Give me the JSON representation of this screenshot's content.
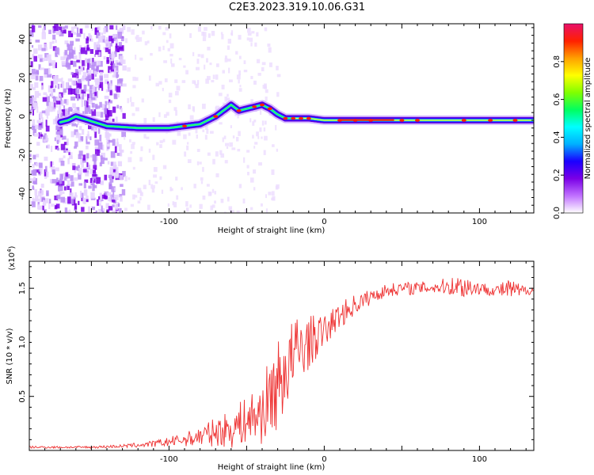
{
  "title": "C2E3.2023.319.10.06.G31",
  "chart_data": [
    {
      "type": "heatmap",
      "name": "spectrogram",
      "xlabel": "Height of straight line (km)",
      "ylabel": "Frequency (Hz)",
      "xlim": [
        -190,
        135
      ],
      "ylim": [
        -50,
        48
      ],
      "x_ticks": [
        -100,
        0,
        100
      ],
      "y_ticks": [
        -40,
        -20,
        0,
        20,
        40
      ],
      "colorbar": {
        "label": "Normalized spectral amplitude",
        "ticks": [
          "0.0",
          "0.2",
          "0.4",
          "0.6",
          "0.8"
        ],
        "range": [
          0,
          1
        ],
        "colors": [
          "#ffffff",
          "#c070ff",
          "#7a00e6",
          "#1a00ff",
          "#00b0ff",
          "#00ffff",
          "#00ff60",
          "#80ff00",
          "#ffff00",
          "#ffa000",
          "#ff2000",
          "#e8106a"
        ]
      },
      "ridge": {
        "x": [
          -170,
          -165,
          -160,
          -140,
          -120,
          -100,
          -90,
          -80,
          -70,
          -65,
          -60,
          -55,
          -50,
          -45,
          -40,
          -35,
          -30,
          -25,
          -20,
          -10,
          0,
          20,
          40,
          60,
          80,
          100,
          120,
          135
        ],
        "y": [
          -3,
          -2,
          0,
          -5,
          -6,
          -6,
          -5,
          -4,
          0,
          3,
          6,
          3,
          4,
          5,
          6,
          4,
          1,
          -1,
          -1,
          -1,
          -2,
          -2,
          -2,
          -2,
          -2,
          -2,
          -2,
          -2
        ]
      },
      "hotspots_x": [
        -90,
        -70,
        -55,
        -45,
        -40,
        -35,
        -25,
        -20,
        -15,
        -10,
        10,
        20,
        30,
        50,
        60,
        90,
        107,
        123
      ]
    },
    {
      "type": "line",
      "name": "snr",
      "xlabel": "Height of straight line (km)",
      "ylabel": "SNR (10 * v/v)",
      "y_multiplier_label": "(x10",
      "y_multiplier_exp": "4",
      "xlim": [
        -190,
        135
      ],
      "ylim": [
        0,
        1.75
      ],
      "x_ticks": [
        -100,
        0,
        100
      ],
      "y_ticks": [
        "0.5",
        "1.0",
        "1.5"
      ],
      "y_tick_values": [
        0.5,
        1.0,
        1.5
      ],
      "color": "#ee3333",
      "series": [
        {
          "x": [
            -190,
            -150,
            -130,
            -110,
            -90,
            -80,
            -70,
            -60,
            -50,
            -40,
            -35,
            -30,
            -25,
            -20,
            -15,
            -10,
            -5,
            0,
            10,
            20,
            30,
            40,
            50,
            60,
            70,
            80,
            90,
            100,
            110,
            120,
            125,
            130,
            135
          ],
          "values": [
            0.03,
            0.03,
            0.04,
            0.06,
            0.1,
            0.13,
            0.17,
            0.2,
            0.28,
            0.35,
            0.5,
            0.6,
            0.75,
            0.85,
            0.95,
            1.0,
            1.05,
            1.1,
            1.25,
            1.35,
            1.42,
            1.48,
            1.5,
            1.5,
            1.51,
            1.52,
            1.52,
            1.5,
            1.48,
            1.49,
            1.47,
            1.48,
            1.48
          ]
        }
      ],
      "noise_amplitude": [
        0.01,
        0.01,
        0.015,
        0.03,
        0.06,
        0.1,
        0.13,
        0.18,
        0.22,
        0.3,
        0.38,
        0.42,
        0.4,
        0.38,
        0.32,
        0.25,
        0.2,
        0.15,
        0.12,
        0.1,
        0.07,
        0.06,
        0.06,
        0.06,
        0.06,
        0.08,
        0.12,
        0.06,
        0.05,
        0.1,
        0.08,
        0.04,
        0.04
      ]
    }
  ]
}
